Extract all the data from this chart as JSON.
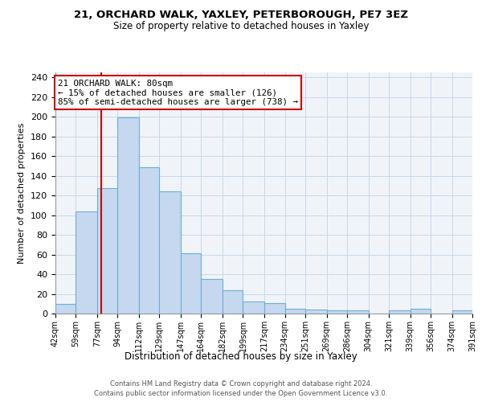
{
  "title": "21, ORCHARD WALK, YAXLEY, PETERBOROUGH, PE7 3EZ",
  "subtitle": "Size of property relative to detached houses in Yaxley",
  "xlabel": "Distribution of detached houses by size in Yaxley",
  "ylabel": "Number of detached properties",
  "bin_edges": [
    42,
    59,
    77,
    94,
    112,
    129,
    147,
    164,
    182,
    199,
    217,
    234,
    251,
    269,
    286,
    304,
    321,
    339,
    356,
    374,
    391
  ],
  "bin_labels": [
    "42sqm",
    "59sqm",
    "77sqm",
    "94sqm",
    "112sqm",
    "129sqm",
    "147sqm",
    "164sqm",
    "182sqm",
    "199sqm",
    "217sqm",
    "234sqm",
    "251sqm",
    "269sqm",
    "286sqm",
    "304sqm",
    "321sqm",
    "339sqm",
    "356sqm",
    "374sqm",
    "391sqm"
  ],
  "counts": [
    10,
    104,
    127,
    199,
    149,
    124,
    61,
    35,
    24,
    12,
    11,
    5,
    4,
    3,
    3,
    0,
    3,
    5,
    0,
    3
  ],
  "bar_color": "#c5d8ef",
  "bar_edge_color": "#6aaed6",
  "vline_x": 80,
  "vline_color": "#cc0000",
  "annotation_text": "21 ORCHARD WALK: 80sqm\n← 15% of detached houses are smaller (126)\n85% of semi-detached houses are larger (738) →",
  "annotation_box_color": "#ffffff",
  "annotation_box_edge": "#cc0000",
  "ylim": [
    0,
    245
  ],
  "yticks": [
    0,
    20,
    40,
    60,
    80,
    100,
    120,
    140,
    160,
    180,
    200,
    220,
    240
  ],
  "footer_line1": "Contains HM Land Registry data © Crown copyright and database right 2024.",
  "footer_line2": "Contains public sector information licensed under the Open Government Licence v3.0."
}
